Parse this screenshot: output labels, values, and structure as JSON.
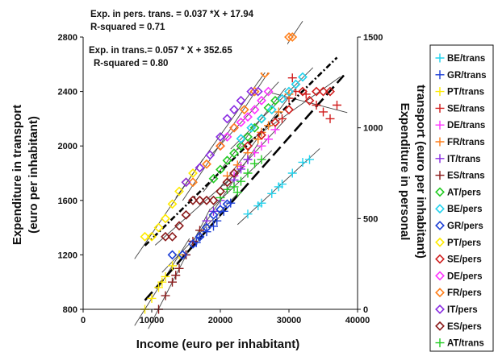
{
  "chart_data": {
    "type": "scatter",
    "annotations": [
      {
        "id": "pers_eq",
        "text": "Exp. in pers. trans. = 0.037 *X + 17.94"
      },
      {
        "id": "pers_r2",
        "text": "R-squared = 0.71"
      },
      {
        "id": "trans_eq",
        "text": "Exp. in trans.= 0.057 * X + 352.65"
      },
      {
        "id": "trans_r2",
        "text": "R-squared = 0.80"
      }
    ],
    "xlabel": "Income (euro per inhabitant)",
    "ylabel": [
      "Expenditure in transport",
      "(euro per inhabitant)"
    ],
    "y2label": [
      "Expenditure in personal",
      "transport (euro per inhabitant)"
    ],
    "xlim": [
      0,
      40000
    ],
    "ylim": [
      800,
      2800
    ],
    "y2lim": [
      0,
      1500
    ],
    "xticks": [
      "0",
      "10000",
      "20000",
      "30000",
      "40000"
    ],
    "yticks": [
      "800",
      "1200",
      "1600",
      "2000",
      "2400",
      "2800"
    ],
    "y2ticks": [
      "0",
      "500",
      "1000",
      "1500"
    ],
    "legend_position": "right",
    "series": [
      {
        "name": "BE/trans",
        "axis": "left",
        "marker": "plus",
        "color": "#22d3ee",
        "points": [
          [
            24000,
            1500
          ],
          [
            26000,
            1580
          ],
          [
            27500,
            1650
          ],
          [
            29000,
            1720
          ],
          [
            30500,
            1800
          ],
          [
            32000,
            1880
          ],
          [
            33000,
            1900
          ],
          [
            25500,
            1560
          ],
          [
            28500,
            1700
          ]
        ]
      },
      {
        "name": "GR/trans",
        "axis": "left",
        "marker": "plus",
        "color": "#1d3fd6",
        "points": [
          [
            15000,
            1200
          ],
          [
            16500,
            1290
          ],
          [
            18000,
            1370
          ],
          [
            19500,
            1450
          ],
          [
            20500,
            1520
          ],
          [
            21500,
            1580
          ],
          [
            17000,
            1330
          ],
          [
            19000,
            1410
          ]
        ]
      },
      {
        "name": "PT/trans",
        "axis": "left",
        "marker": "plus",
        "color": "#ffea00",
        "points": [
          [
            9000,
            800
          ],
          [
            10000,
            880
          ],
          [
            11000,
            960
          ],
          [
            12000,
            1040
          ],
          [
            13000,
            1120
          ],
          [
            14000,
            1200
          ],
          [
            11500,
            1000
          ]
        ]
      },
      {
        "name": "SE/trans",
        "axis": "left",
        "marker": "plus",
        "color": "#d11d1d",
        "points": [
          [
            29000,
            2200
          ],
          [
            30000,
            2350
          ],
          [
            31000,
            2400
          ],
          [
            32500,
            2380
          ],
          [
            34000,
            2300
          ],
          [
            35000,
            2250
          ],
          [
            36000,
            2200
          ],
          [
            37000,
            2300
          ],
          [
            30500,
            2500
          ]
        ]
      },
      {
        "name": "DE/trans",
        "axis": "left",
        "marker": "plus",
        "color": "#ff33ff",
        "points": [
          [
            22000,
            1780
          ],
          [
            23000,
            1850
          ],
          [
            24000,
            1900
          ],
          [
            25000,
            1950
          ],
          [
            26000,
            2000
          ],
          [
            27000,
            2050
          ],
          [
            28000,
            2120
          ]
        ]
      },
      {
        "name": "FR/trans",
        "axis": "left",
        "marker": "plus",
        "color": "#ff7f1a",
        "points": [
          [
            21000,
            1780
          ],
          [
            22500,
            1860
          ],
          [
            24000,
            1950
          ],
          [
            25500,
            2050
          ],
          [
            27000,
            2150
          ],
          [
            28500,
            2250
          ],
          [
            30000,
            2380
          ],
          [
            26000,
            2100
          ]
        ]
      },
      {
        "name": "IT/trans",
        "axis": "left",
        "marker": "plus",
        "color": "#8a2be2",
        "points": [
          [
            18000,
            1450
          ],
          [
            19000,
            1520
          ],
          [
            20000,
            1600
          ],
          [
            21000,
            1680
          ],
          [
            22000,
            1750
          ],
          [
            23000,
            1830
          ],
          [
            24000,
            1900
          ]
        ]
      },
      {
        "name": "ES/trans",
        "axis": "left",
        "marker": "plus",
        "color": "#8b1a1a",
        "points": [
          [
            11000,
            800
          ],
          [
            12000,
            900
          ],
          [
            13000,
            1000
          ],
          [
            14000,
            1100
          ],
          [
            15000,
            1200
          ],
          [
            16000,
            1300
          ],
          [
            17000,
            1380
          ],
          [
            13500,
            1050
          ]
        ]
      },
      {
        "name": "AT/trans",
        "axis": "left",
        "marker": "plus",
        "color": "#22cc22",
        "points": [
          [
            20000,
            1620
          ],
          [
            21000,
            1680
          ],
          [
            22000,
            1700
          ],
          [
            23000,
            1740
          ],
          [
            24000,
            1800
          ],
          [
            25000,
            1870
          ],
          [
            26000,
            1900
          ],
          [
            22500,
            1660
          ]
        ]
      },
      {
        "name": "AT/pers",
        "axis": "right",
        "marker": "diamond",
        "color": "#22cc22",
        "points": [
          [
            19000,
            720
          ],
          [
            20000,
            770
          ],
          [
            21000,
            820
          ],
          [
            22000,
            860
          ],
          [
            23000,
            900
          ],
          [
            24000,
            950
          ],
          [
            25000,
            1000
          ],
          [
            26000,
            1050
          ],
          [
            27000,
            1110
          ],
          [
            28000,
            1150
          ]
        ]
      },
      {
        "name": "BE/pers",
        "axis": "right",
        "marker": "diamond",
        "color": "#22d3ee",
        "points": [
          [
            23000,
            940
          ],
          [
            24500,
            1000
          ],
          [
            26000,
            1050
          ],
          [
            27500,
            1100
          ],
          [
            29000,
            1160
          ],
          [
            30000,
            1200
          ],
          [
            31000,
            1240
          ],
          [
            32000,
            1280
          ]
        ]
      },
      {
        "name": "GR/pers",
        "axis": "right",
        "marker": "diamond",
        "color": "#1d3fd6",
        "points": [
          [
            13000,
            300
          ],
          [
            14500,
            300
          ],
          [
            16000,
            360
          ],
          [
            17000,
            400
          ],
          [
            18000,
            450
          ],
          [
            19000,
            520
          ],
          [
            20000,
            550
          ],
          [
            21000,
            580
          ]
        ]
      },
      {
        "name": "PT/pers",
        "axis": "right",
        "marker": "diamond",
        "color": "#ffea00",
        "points": [
          [
            9000,
            400
          ],
          [
            10000,
            400
          ],
          [
            11000,
            450
          ],
          [
            12000,
            500
          ],
          [
            13000,
            580
          ],
          [
            14000,
            650
          ],
          [
            15000,
            700
          ],
          [
            16000,
            750
          ]
        ]
      },
      {
        "name": "SE/pers",
        "axis": "right",
        "marker": "diamond",
        "color": "#d11d1d",
        "points": [
          [
            24000,
            900
          ],
          [
            26000,
            960
          ],
          [
            28000,
            1030
          ],
          [
            30000,
            1100
          ],
          [
            32000,
            1200
          ],
          [
            34000,
            1200
          ],
          [
            35000,
            1200
          ],
          [
            36000,
            1200
          ],
          [
            33000,
            1150
          ]
        ]
      },
      {
        "name": "DE/pers",
        "axis": "right",
        "marker": "diamond",
        "color": "#ff33ff",
        "points": [
          [
            20000,
            900
          ],
          [
            21000,
            950
          ],
          [
            22000,
            1000
          ],
          [
            23000,
            1030
          ],
          [
            24000,
            1060
          ],
          [
            25000,
            1100
          ],
          [
            26000,
            1150
          ],
          [
            27000,
            1200
          ]
        ]
      },
      {
        "name": "FR/pers",
        "axis": "right",
        "marker": "diamond",
        "color": "#ff7f1a",
        "points": [
          [
            16000,
            700
          ],
          [
            18000,
            800
          ],
          [
            20000,
            900
          ],
          [
            22000,
            1000
          ],
          [
            23500,
            1100
          ],
          [
            25000,
            1200
          ],
          [
            26500,
            1300
          ],
          [
            28000,
            1350
          ],
          [
            29000,
            1400
          ],
          [
            30000,
            1500
          ],
          [
            30500,
            1500
          ]
        ]
      },
      {
        "name": "IT/pers",
        "axis": "right",
        "marker": "diamond",
        "color": "#8a2be2",
        "points": [
          [
            15000,
            700
          ],
          [
            17000,
            780
          ],
          [
            18500,
            850
          ],
          [
            20000,
            950
          ],
          [
            21000,
            1050
          ],
          [
            22000,
            1100
          ],
          [
            23000,
            1150
          ],
          [
            24500,
            1200
          ],
          [
            25500,
            1200
          ]
        ]
      },
      {
        "name": "ES/pers",
        "axis": "right",
        "marker": "diamond",
        "color": "#8b1a1a",
        "points": [
          [
            12000,
            400
          ],
          [
            13000,
            400
          ],
          [
            14000,
            460
          ],
          [
            15000,
            520
          ],
          [
            16000,
            600
          ],
          [
            17000,
            600
          ],
          [
            18000,
            600
          ],
          [
            19000,
            600
          ],
          [
            20000,
            650
          ],
          [
            21000,
            700
          ],
          [
            22000,
            750
          ]
        ]
      }
    ],
    "fits": [
      {
        "axis": "left",
        "style": "dashed",
        "x": [
          9000,
          38000
        ],
        "y": [
          865.65,
          2518.65
        ]
      },
      {
        "axis": "right",
        "style": "dash-dot",
        "x": [
          9000,
          37000
        ],
        "y": [
          350.94,
          1386.94
        ]
      }
    ],
    "legend_order": [
      "BE/trans",
      "GR/trans",
      "PT/trans",
      "SE/trans",
      "DE/trans",
      "FR/trans",
      "IT/trans",
      "ES/trans",
      "AT/pers",
      "BE/pers",
      "GR/pers",
      "PT/pers",
      "SE/pers",
      "DE/pers",
      "FR/pers",
      "IT/pers",
      "ES/pers",
      "AT/trans"
    ]
  }
}
